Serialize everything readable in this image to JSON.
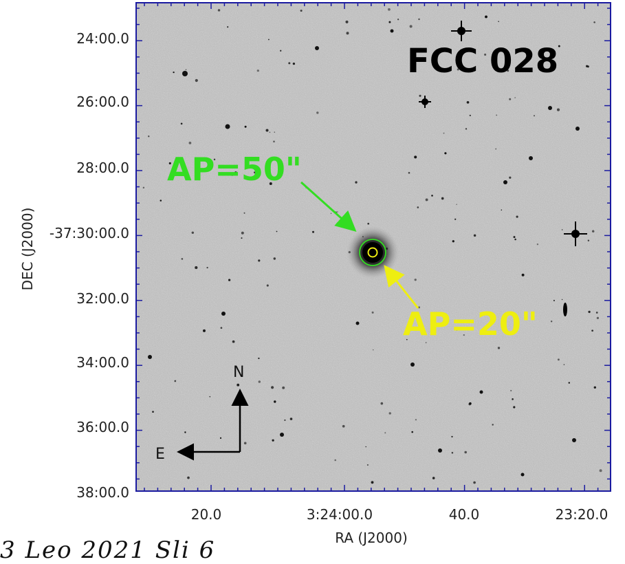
{
  "image": {
    "title": "FCC 028",
    "annotations": {
      "outer_aperture_label": "AP=50\"",
      "inner_aperture_label": "AP=20\"",
      "outer_color": "#33dd22",
      "inner_color": "#eeee11"
    },
    "compass": {
      "north": "N",
      "east": "E"
    },
    "axes": {
      "xlabel": "RA (J2000)",
      "ylabel": "DEC (J2000)",
      "x_ticks": [
        "20.0",
        "3:24:00.0",
        "40.0",
        "23:20.0"
      ],
      "y_ticks": [
        "24:00.0",
        "26:00.0",
        "28:00.0",
        "-37:30:00.0",
        "32:00.0",
        "34:00.0",
        "36:00.0",
        "38:00.0"
      ]
    },
    "frame_color": "#1a1aa0",
    "background_gray": "#b9b9b9",
    "caption_fragment": "3 Leo 2021 Sli 6"
  }
}
